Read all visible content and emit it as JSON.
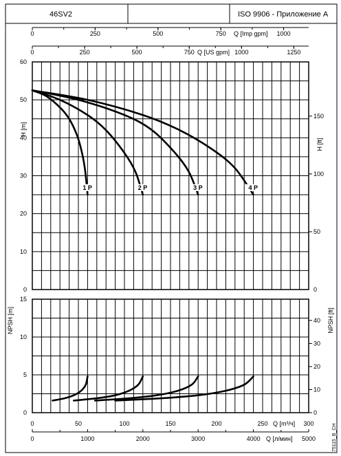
{
  "header": {
    "model": "46SV2",
    "standard": "ISO 9906 - Приложение A"
  },
  "side_code": "75115_B_CH",
  "chart_data": [
    {
      "type": "line",
      "name": "head-chart",
      "x_axis_label": "Q [m³/ч]",
      "xlim": [
        0,
        300
      ],
      "x_ticks": [
        0,
        50,
        100,
        150,
        200,
        250,
        300
      ],
      "y_axis_label": "H [m]",
      "ylim": [
        0,
        60
      ],
      "y_ticks": [
        0,
        10,
        20,
        30,
        40,
        50,
        60
      ],
      "y2_axis_label": "H [ft]",
      "y2_ticks": [
        50,
        100,
        150
      ],
      "top_axes": [
        {
          "label": "Q [Imp gpm]",
          "ticks": [
            0,
            250,
            500,
            750,
            1000
          ]
        },
        {
          "label": "Q [US gpm]",
          "ticks": [
            0,
            250,
            500,
            750,
            1000,
            1250
          ]
        }
      ],
      "grid": true,
      "series": [
        {
          "name": "1 P",
          "label_at": [
            62,
            26.5
          ],
          "points": [
            [
              0,
              52.5
            ],
            [
              15,
              51
            ],
            [
              30,
              48
            ],
            [
              40,
              45
            ],
            [
              48,
              41
            ],
            [
              53,
              37
            ],
            [
              57,
              32
            ],
            [
              60,
              25
            ]
          ]
        },
        {
          "name": "2 P",
          "label_at": [
            122,
            26.5
          ],
          "points": [
            [
              0,
              52.5
            ],
            [
              30,
              50
            ],
            [
              60,
              46
            ],
            [
              80,
              42
            ],
            [
              100,
              36
            ],
            [
              112,
              31
            ],
            [
              120,
              25
            ]
          ]
        },
        {
          "name": "3 P",
          "label_at": [
            182,
            26.5
          ],
          "points": [
            [
              0,
              52.5
            ],
            [
              50,
              50
            ],
            [
              100,
              46
            ],
            [
              130,
              42
            ],
            [
              155,
              36
            ],
            [
              170,
              31
            ],
            [
              180,
              25
            ]
          ]
        },
        {
          "name": "4 P",
          "label_at": [
            242,
            26.5
          ],
          "points": [
            [
              0,
              52.5
            ],
            [
              60,
              50
            ],
            [
              120,
              46
            ],
            [
              160,
              42
            ],
            [
              195,
              37
            ],
            [
              220,
              32
            ],
            [
              240,
              25
            ]
          ]
        }
      ]
    },
    {
      "type": "line",
      "name": "npsh-chart",
      "x_axis_label": "Q [m³/ч]",
      "xlim": [
        0,
        300
      ],
      "x_ticks": [
        0,
        50,
        100,
        150,
        200,
        250,
        300
      ],
      "y_axis_label": "NPSH [m]",
      "ylim": [
        0,
        15
      ],
      "y_ticks": [
        0,
        5,
        10,
        15
      ],
      "y2_axis_label": "NPSH [ft]",
      "y2_ticks": [
        0,
        10,
        20,
        30,
        40
      ],
      "bottom_axis": {
        "label": "Q [л/мин]",
        "ticks": [
          0,
          1000,
          2000,
          3000,
          4000,
          5000
        ]
      },
      "grid": true,
      "series": [
        {
          "name": "1 P",
          "points": [
            [
              22,
              1.6
            ],
            [
              35,
              1.9
            ],
            [
              45,
              2.3
            ],
            [
              53,
              2.9
            ],
            [
              58,
              3.7
            ],
            [
              60,
              4.8
            ]
          ]
        },
        {
          "name": "2 P",
          "points": [
            [
              45,
              1.6
            ],
            [
              70,
              1.9
            ],
            [
              90,
              2.3
            ],
            [
              105,
              2.9
            ],
            [
              115,
              3.7
            ],
            [
              120,
              4.8
            ]
          ]
        },
        {
          "name": "3 P",
          "points": [
            [
              68,
              1.6
            ],
            [
              105,
              1.9
            ],
            [
              135,
              2.3
            ],
            [
              158,
              2.9
            ],
            [
              173,
              3.7
            ],
            [
              180,
              4.8
            ]
          ]
        },
        {
          "name": "4 P",
          "points": [
            [
              90,
              1.6
            ],
            [
              140,
              1.9
            ],
            [
              180,
              2.3
            ],
            [
              210,
              2.9
            ],
            [
              230,
              3.7
            ],
            [
              240,
              4.8
            ]
          ]
        }
      ]
    }
  ]
}
